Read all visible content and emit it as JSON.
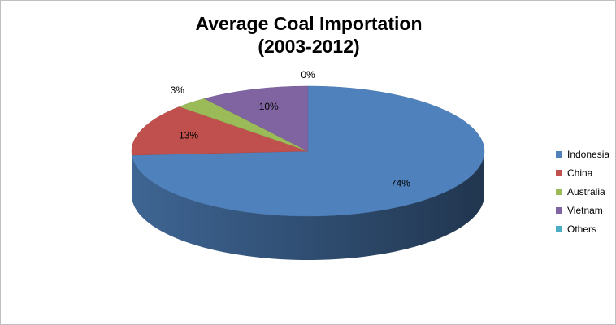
{
  "chart_data": {
    "type": "pie",
    "title": "Average Coal Importation",
    "subtitle": "(2003-2012)",
    "categories": [
      "Indonesia",
      "China",
      "Australia",
      "Vietnam",
      "Others"
    ],
    "values": [
      74,
      13,
      3,
      10,
      0
    ],
    "data_labels": [
      "74%",
      "13%",
      "3%",
      "10%",
      "0%"
    ],
    "colors": [
      "#4f81bd",
      "#c0504d",
      "#9bbb59",
      "#8064a2",
      "#4bacc6"
    ],
    "legend_position": "right",
    "style": "3D"
  }
}
